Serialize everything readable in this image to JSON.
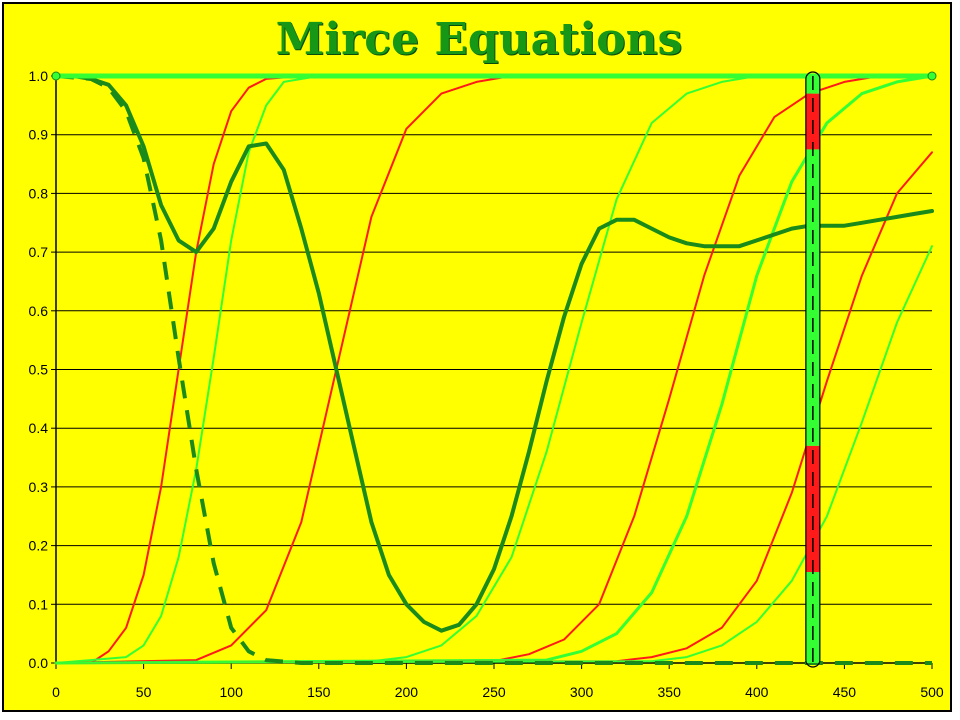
{
  "chart_data": {
    "type": "line",
    "title": "Mirce Equations",
    "xlabel": "",
    "ylabel": "",
    "xlim": [
      0,
      500
    ],
    "ylim": [
      0,
      1
    ],
    "x_ticks": [
      "0",
      "50",
      "100",
      "150",
      "200",
      "250",
      "300",
      "350",
      "400",
      "450",
      "500"
    ],
    "y_ticks": [
      "0.0",
      "0.1",
      "0.2",
      "0.3",
      "0.4",
      "0.5",
      "0.6",
      "0.7",
      "0.8",
      "0.9",
      "1.0"
    ],
    "grid": "horizontal",
    "colors": {
      "background": "#ffff00",
      "red": "#ff1a1a",
      "light_green": "#33ff33",
      "dark_green": "#1a8a1a",
      "title": "#169716"
    },
    "series": [
      {
        "color": "#ff1a1a",
        "width": 2,
        "dash": false,
        "x": [
          0,
          20,
          30,
          40,
          50,
          60,
          70,
          80,
          90,
          100,
          110,
          120,
          140
        ],
        "y": [
          0,
          0,
          0.02,
          0.06,
          0.15,
          0.3,
          0.5,
          0.7,
          0.85,
          0.94,
          0.98,
          0.995,
          1
        ]
      },
      {
        "color": "#33ff33",
        "width": 2,
        "dash": false,
        "x": [
          0,
          40,
          50,
          60,
          70,
          80,
          90,
          100,
          110,
          120,
          130,
          150
        ],
        "y": [
          0,
          0.01,
          0.03,
          0.08,
          0.18,
          0.33,
          0.52,
          0.72,
          0.87,
          0.95,
          0.99,
          1
        ]
      },
      {
        "color": "#ff1a1a",
        "width": 2,
        "dash": false,
        "x": [
          0,
          80,
          100,
          120,
          140,
          160,
          180,
          200,
          220,
          240,
          260
        ],
        "y": [
          0,
          0.005,
          0.03,
          0.09,
          0.24,
          0.5,
          0.76,
          0.91,
          0.97,
          0.99,
          1
        ]
      },
      {
        "color": "#33ff33",
        "width": 2,
        "dash": false,
        "x": [
          0,
          180,
          200,
          220,
          240,
          260,
          280,
          300,
          320,
          340,
          360,
          380,
          400
        ],
        "y": [
          0,
          0.003,
          0.01,
          0.03,
          0.08,
          0.18,
          0.36,
          0.58,
          0.79,
          0.92,
          0.97,
          0.99,
          1
        ]
      },
      {
        "color": "#ff1a1a",
        "width": 2,
        "dash": false,
        "x": [
          0,
          250,
          270,
          290,
          310,
          330,
          350,
          370,
          390,
          410,
          430,
          450,
          470
        ],
        "y": [
          0,
          0.003,
          0.015,
          0.04,
          0.1,
          0.25,
          0.45,
          0.66,
          0.83,
          0.93,
          0.97,
          0.99,
          1
        ]
      },
      {
        "color": "#33ff33",
        "width": 3,
        "dash": false,
        "x": [
          0,
          280,
          300,
          320,
          340,
          360,
          380,
          400,
          420,
          440,
          460,
          480,
          500
        ],
        "y": [
          0,
          0.005,
          0.02,
          0.05,
          0.12,
          0.25,
          0.44,
          0.66,
          0.82,
          0.92,
          0.97,
          0.99,
          1
        ]
      },
      {
        "color": "#ff1a1a",
        "width": 2,
        "dash": false,
        "x": [
          0,
          320,
          340,
          360,
          380,
          400,
          420,
          440,
          460,
          480,
          500
        ],
        "y": [
          0,
          0.003,
          0.01,
          0.025,
          0.06,
          0.14,
          0.29,
          0.48,
          0.66,
          0.8,
          0.87
        ]
      },
      {
        "color": "#33ff33",
        "width": 2,
        "dash": false,
        "x": [
          0,
          340,
          360,
          380,
          400,
          420,
          440,
          460,
          480,
          500
        ],
        "y": [
          0,
          0.003,
          0.01,
          0.03,
          0.07,
          0.14,
          0.25,
          0.41,
          0.58,
          0.71
        ]
      },
      {
        "color": "#1a8a1a",
        "width": 4,
        "dash": false,
        "x": [
          0,
          10,
          20,
          30,
          40,
          50,
          60,
          70,
          80,
          90,
          100,
          110,
          120,
          130,
          140,
          150,
          160,
          170,
          180,
          190,
          200,
          210,
          220,
          230,
          240,
          250,
          260,
          270,
          280,
          290,
          300,
          310,
          320,
          330,
          340,
          350,
          360,
          370,
          380,
          390,
          400,
          410,
          420,
          430,
          440,
          450,
          460,
          470,
          480,
          490,
          500
        ],
        "y": [
          1.0,
          1.0,
          0.995,
          0.985,
          0.95,
          0.88,
          0.78,
          0.72,
          0.7,
          0.74,
          0.82,
          0.88,
          0.885,
          0.84,
          0.74,
          0.63,
          0.5,
          0.37,
          0.24,
          0.15,
          0.1,
          0.07,
          0.055,
          0.065,
          0.1,
          0.16,
          0.25,
          0.36,
          0.48,
          0.59,
          0.68,
          0.74,
          0.755,
          0.755,
          0.74,
          0.725,
          0.715,
          0.71,
          0.71,
          0.71,
          0.72,
          0.73,
          0.74,
          0.745,
          0.745,
          0.745,
          0.75,
          0.755,
          0.76,
          0.765,
          0.77
        ]
      },
      {
        "color": "#1a8a1a",
        "width": 4,
        "dash": "18,12",
        "x": [
          0,
          20,
          30,
          40,
          50,
          60,
          70,
          80,
          90,
          100,
          110,
          120,
          140,
          200,
          300,
          400,
          500
        ],
        "y": [
          1,
          0.995,
          0.98,
          0.94,
          0.86,
          0.72,
          0.52,
          0.33,
          0.17,
          0.06,
          0.02,
          0.005,
          0,
          0,
          0,
          0,
          0
        ]
      },
      {
        "color": "#33ff33",
        "width": 5,
        "dash": false,
        "x": [
          0,
          500
        ],
        "y": [
          1,
          1
        ]
      }
    ],
    "highlight_bar": {
      "x": 432,
      "segments": [
        {
          "from": 0,
          "to": 0.155,
          "color": "#33ff33"
        },
        {
          "from": 0.155,
          "to": 0.37,
          "color": "#ff1a1a"
        },
        {
          "from": 0.37,
          "to": 0.875,
          "color": "#33ff33"
        },
        {
          "from": 0.875,
          "to": 0.97,
          "color": "#ff1a1a"
        },
        {
          "from": 0.97,
          "to": 1.0,
          "color": "#33ff33"
        }
      ]
    }
  }
}
